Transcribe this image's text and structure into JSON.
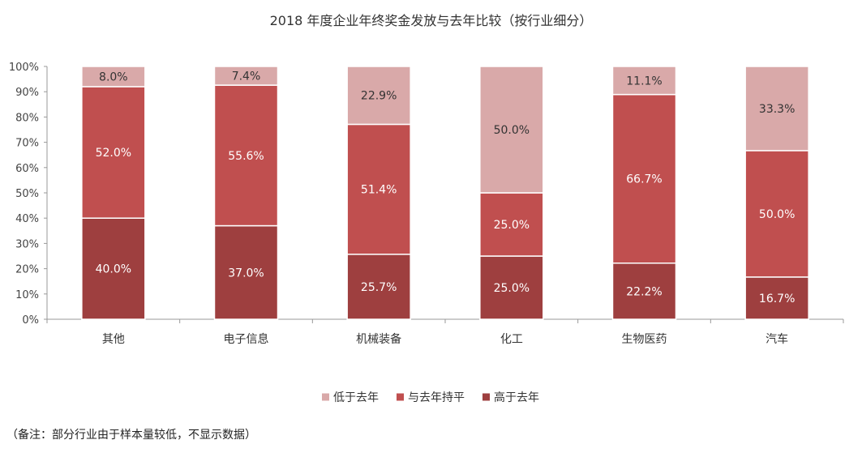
{
  "chart_data": {
    "type": "bar",
    "stacked": true,
    "title": "2018 年度企业年终奖金发放与去年比较（按行业细分）",
    "categories": [
      "其他",
      "电子信息",
      "机械装备",
      "化工",
      "生物医药",
      "汽车"
    ],
    "series": [
      {
        "name": "高于去年",
        "color": "#9e3f3f",
        "values": [
          40.0,
          37.0,
          25.7,
          25.0,
          22.2,
          16.7
        ]
      },
      {
        "name": "与去年持平",
        "color": "#c04f4f",
        "values": [
          52.0,
          55.6,
          51.4,
          25.0,
          66.7,
          50.0
        ]
      },
      {
        "name": "低于去年",
        "color": "#d9a9a9",
        "values": [
          8.0,
          7.4,
          22.9,
          50.0,
          11.1,
          33.3
        ]
      }
    ],
    "legend_order": [
      "低于去年",
      "与去年持平",
      "高于去年"
    ],
    "legend_position": "bottom",
    "yticks": [
      "0%",
      "10%",
      "20%",
      "30%",
      "40%",
      "50%",
      "60%",
      "70%",
      "80%",
      "90%",
      "100%"
    ],
    "ylim": [
      0,
      100
    ],
    "grid": false
  },
  "footnote": "（备注：部分行业由于样本量较低，不显示数据）"
}
